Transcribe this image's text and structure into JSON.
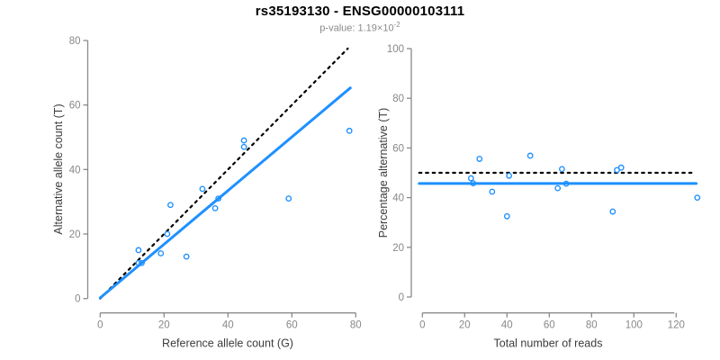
{
  "header": {
    "title": "rs35193130 - ENSG00000103111",
    "pvalue_prefix": "p-value: ",
    "pvalue_mantissa": "1.19×10",
    "pvalue_exponent": "-2"
  },
  "colors": {
    "accent_blue": "#1E90FF",
    "identity_black": "#000000",
    "axis_gray": "#8a8a8a",
    "tick_label_gray": "#888888",
    "axis_title_gray": "#3c3c3c",
    "title_black": "#000000",
    "subtitle_gray": "#8a8a8a"
  },
  "chart_data": [
    {
      "type": "scatter",
      "panel": "left",
      "xlabel": "Reference allele count (G)",
      "ylabel": "Alternative allele count (T)",
      "xlim": [
        0,
        80
      ],
      "ylim": [
        0,
        80
      ],
      "xticks": [
        0,
        20,
        40,
        60,
        80
      ],
      "yticks": [
        0,
        20,
        40,
        60,
        80
      ],
      "marker": "open-circle",
      "points": [
        [
          12,
          15
        ],
        [
          12,
          11
        ],
        [
          13,
          11
        ],
        [
          19,
          14
        ],
        [
          21,
          20
        ],
        [
          22,
          29
        ],
        [
          27,
          13
        ],
        [
          32,
          34
        ],
        [
          36,
          28
        ],
        [
          37,
          31
        ],
        [
          45,
          47
        ],
        [
          45,
          49
        ],
        [
          59,
          31
        ],
        [
          78,
          52
        ]
      ],
      "lines": [
        {
          "name": "identity-line",
          "style": "dotted",
          "color": "#000000",
          "from": [
            0,
            0
          ],
          "to": [
            77.5,
            77.5
          ]
        },
        {
          "name": "fit-line",
          "style": "solid",
          "color": "#1E90FF",
          "from": [
            0,
            0.2
          ],
          "to": [
            78.3,
            65.3
          ]
        }
      ]
    },
    {
      "type": "scatter",
      "panel": "right",
      "xlabel": "Total number of reads",
      "ylabel": "Percentage alternative (T)",
      "xlim": [
        0,
        130
      ],
      "ylim": [
        0,
        100
      ],
      "xticks": [
        0,
        20,
        40,
        60,
        80,
        100,
        120
      ],
      "yticks": [
        0,
        20,
        40,
        60,
        80,
        100
      ],
      "marker": "open-circle",
      "points": [
        [
          27,
          55.6
        ],
        [
          23,
          47.8
        ],
        [
          24,
          45.8
        ],
        [
          33,
          42.4
        ],
        [
          41,
          48.8
        ],
        [
          51,
          56.9
        ],
        [
          40,
          32.5
        ],
        [
          66,
          51.5
        ],
        [
          64,
          43.8
        ],
        [
          68,
          45.6
        ],
        [
          92,
          51.1
        ],
        [
          94,
          52.1
        ],
        [
          90,
          34.4
        ],
        [
          130,
          40.0
        ]
      ],
      "lines": [
        {
          "name": "reference-50pct-line",
          "style": "dotted",
          "color": "#000000",
          "from": [
            -1.5,
            50
          ],
          "to": [
            128,
            50
          ]
        },
        {
          "name": "fit-line",
          "style": "solid",
          "color": "#1E90FF",
          "from": [
            -1.5,
            45.7
          ],
          "to": [
            129.5,
            45.7
          ]
        }
      ]
    }
  ]
}
